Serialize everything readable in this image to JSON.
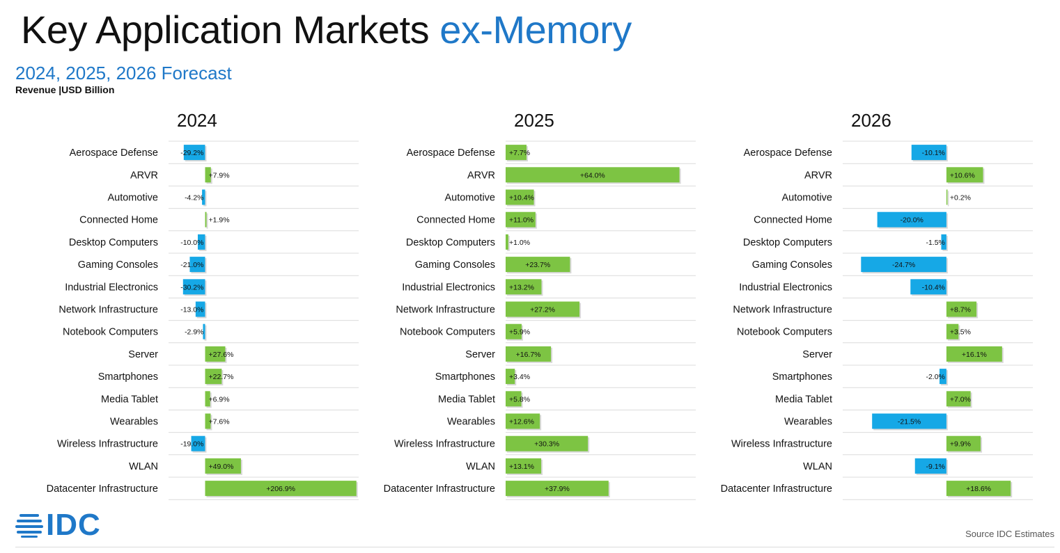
{
  "title": {
    "main": "Key Application Markets",
    "accent": "ex-Memory"
  },
  "subtitle": "2024, 2025, 2026 Forecast",
  "unit_label": "Revenue |USD Billion",
  "source": "Source IDC Estimates",
  "logo_text": "IDC",
  "colors": {
    "positive": "#7dc443",
    "negative": "#16a8e6",
    "accent": "#1f78c8",
    "grid": "#dcdcdc"
  },
  "chart_data": [
    {
      "type": "bar",
      "orientation": "horizontal",
      "title": "2024",
      "categories": [
        "Aerospace Defense",
        "ARVR",
        "Automotive",
        "Connected Home",
        "Desktop Computers",
        "Gaming Consoles",
        "Industrial Electronics",
        "Network Infrastructure",
        "Notebook Computers",
        "Server",
        "Smartphones",
        "Media Tablet",
        "Wearables",
        "Wireless Infrastructure",
        "WLAN",
        "Datacenter Infrastructure"
      ],
      "values": [
        -29.2,
        7.9,
        -4.2,
        1.9,
        -10.0,
        -21.0,
        -30.2,
        -13.0,
        -2.9,
        27.6,
        22.7,
        6.9,
        7.6,
        -19.0,
        49.0,
        206.9
      ],
      "labels": [
        "-29.2%",
        "+7.9%",
        "-4.2%",
        "+1.9%",
        "-10.0%",
        "-21.0%",
        "-30.2%",
        "-13.0%",
        "-2.9%",
        "+27.6%",
        "+22.7%",
        "+6.9%",
        "+7.6%",
        "-19.0%",
        "+49.0%",
        "+206.9%"
      ],
      "xlim": [
        -50,
        210
      ],
      "unit": "%"
    },
    {
      "type": "bar",
      "orientation": "horizontal",
      "title": "2025",
      "categories": [
        "Aerospace Defense",
        "ARVR",
        "Automotive",
        "Connected Home",
        "Desktop Computers",
        "Gaming Consoles",
        "Industrial Electronics",
        "Network Infrastructure",
        "Notebook Computers",
        "Server",
        "Smartphones",
        "Media Tablet",
        "Wearables",
        "Wireless Infrastructure",
        "WLAN",
        "Datacenter Infrastructure"
      ],
      "values": [
        7.7,
        64.0,
        10.4,
        11.0,
        1.0,
        23.7,
        13.2,
        27.2,
        5.9,
        16.7,
        3.4,
        5.8,
        12.6,
        30.3,
        13.1,
        37.9
      ],
      "labels": [
        "+7.7%",
        "+64.0%",
        "+10.4%",
        "+11.0%",
        "+1.0%",
        "+23.7%",
        "+13.2%",
        "+27.2%",
        "+5.9%",
        "+16.7%",
        "+3.4%",
        "+5.8%",
        "+12.6%",
        "+30.3%",
        "+13.1%",
        "+37.9%"
      ],
      "xlim": [
        0,
        70
      ],
      "unit": "%"
    },
    {
      "type": "bar",
      "orientation": "horizontal",
      "title": "2026",
      "categories": [
        "Aerospace Defense",
        "ARVR",
        "Automotive",
        "Connected Home",
        "Desktop Computers",
        "Gaming Consoles",
        "Industrial Electronics",
        "Network Infrastructure",
        "Notebook Computers",
        "Server",
        "Smartphones",
        "Media Tablet",
        "Wearables",
        "Wireless Infrastructure",
        "WLAN",
        "Datacenter Infrastructure"
      ],
      "values": [
        -10.1,
        10.6,
        0.2,
        -20.0,
        -1.5,
        -24.7,
        -10.4,
        8.7,
        3.5,
        16.1,
        -2.0,
        7.0,
        -21.5,
        9.9,
        -9.1,
        18.6
      ],
      "labels": [
        "-10.1%",
        "+10.6%",
        "+0.2%",
        "-20.0%",
        "-1.5%",
        "-24.7%",
        "-10.4%",
        "+8.7%",
        "+3.5%",
        "+16.1%",
        "-2.0%",
        "+7.0%",
        "-21.5%",
        "+9.9%",
        "-9.1%",
        "+18.6%"
      ],
      "xlim": [
        -30,
        25
      ],
      "unit": "%"
    }
  ]
}
